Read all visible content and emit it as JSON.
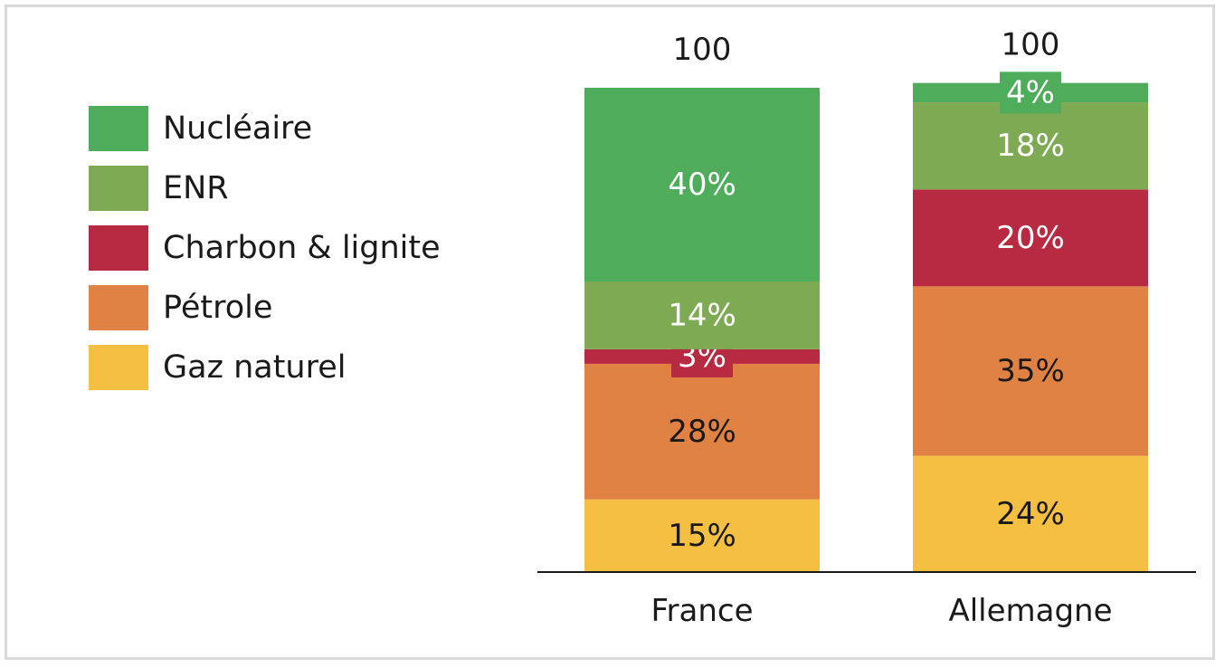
{
  "chart_data": {
    "type": "bar",
    "stacked": true,
    "categories": [
      "France",
      "Allemagne"
    ],
    "totals": [
      "100",
      "100"
    ],
    "series": [
      {
        "name": "Gaz naturel",
        "color": "#f5bf42",
        "values": [
          15,
          24
        ],
        "labels": [
          "15%",
          "24%"
        ],
        "label_color": "#1a1a1a"
      },
      {
        "name": "Pétrole",
        "color": "#e08243",
        "values": [
          28,
          35
        ],
        "labels": [
          "28%",
          "35%"
        ],
        "label_color": "#1a1a1a"
      },
      {
        "name": "Charbon & lignite",
        "color": "#b82a41",
        "values": [
          3,
          20
        ],
        "labels": [
          "3%",
          "20%"
        ],
        "label_color": "#ffffff"
      },
      {
        "name": "ENR",
        "color": "#7faa54",
        "values": [
          14,
          18
        ],
        "labels": [
          "14%",
          "18%"
        ],
        "label_color": "#ffffff"
      },
      {
        "name": "Nucléaire",
        "color": "#4fac5b",
        "values": [
          40,
          4
        ],
        "labels": [
          "40%",
          "4%"
        ],
        "label_color": "#ffffff"
      }
    ],
    "ylim": [
      0,
      100
    ],
    "grid": false,
    "legend_position": "left"
  }
}
